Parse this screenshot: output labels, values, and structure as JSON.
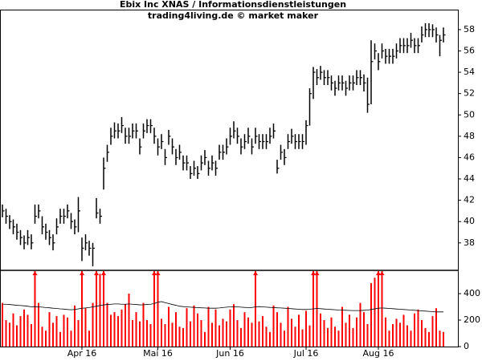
{
  "chart_data": {
    "type": "ohlc-volume",
    "title": "Ebix Inc XNAS / Informationsdienstleistungen",
    "subtitle": "trading4living.de © market maker",
    "categories": [
      null,
      null,
      null,
      null,
      null,
      null,
      null,
      null,
      null,
      null,
      null,
      null,
      null,
      null,
      null,
      null,
      null,
      null,
      null,
      null,
      null,
      null,
      "Apr 16",
      null,
      null,
      null,
      null,
      null,
      null,
      null,
      null,
      null,
      null,
      null,
      null,
      null,
      null,
      null,
      null,
      null,
      null,
      null,
      null,
      "Mai 16",
      null,
      null,
      null,
      null,
      null,
      null,
      null,
      null,
      null,
      null,
      null,
      null,
      null,
      null,
      null,
      null,
      null,
      null,
      null,
      "Jun 16",
      null,
      null,
      null,
      null,
      null,
      null,
      null,
      null,
      null,
      null,
      null,
      null,
      null,
      null,
      null,
      null,
      null,
      null,
      null,
      null,
      "Jul 16",
      null,
      null,
      null,
      null,
      null,
      null,
      null,
      null,
      null,
      null,
      null,
      null,
      null,
      null,
      null,
      null,
      null,
      null,
      null,
      "Aug 16",
      null,
      null,
      null,
      null,
      null,
      null,
      null,
      null,
      null,
      null,
      null,
      null,
      null,
      null,
      null,
      null,
      null,
      null
    ],
    "high": [
      41.6,
      41.2,
      40.6,
      40.2,
      39.8,
      39.2,
      38.7,
      39.2,
      38.8,
      41.6,
      41.6,
      40.5,
      39.8,
      39.2,
      38.8,
      40.3,
      41.2,
      41.2,
      41.6,
      40.8,
      40.2,
      42.3,
      38.5,
      38.8,
      38.2,
      38,
      42.2,
      41.2,
      46,
      47.2,
      48.8,
      49.3,
      49.2,
      49.8,
      48.8,
      48.8,
      49.2,
      49.2,
      47.8,
      49.2,
      49.6,
      49.6,
      48.8,
      47.8,
      48.2,
      46.8,
      48.6,
      47.8,
      46.8,
      47.2,
      46.2,
      46.2,
      45.2,
      45.7,
      45.2,
      46.2,
      46.7,
      45.7,
      46.2,
      45.7,
      47.2,
      47.2,
      47.8,
      48.8,
      49.4,
      48.8,
      47.8,
      48.2,
      48.8,
      47.8,
      48.8,
      48.2,
      48.2,
      48.2,
      48.8,
      49.2,
      45.8,
      47.2,
      46.8,
      48.2,
      48.7,
      48.2,
      48.2,
      48.2,
      49.5,
      52.5,
      54.5,
      54.3,
      54.6,
      54.2,
      54.2,
      53.7,
      53.2,
      53.7,
      53.7,
      53.2,
      53.7,
      53.7,
      54.2,
      54.2,
      53.8,
      53.5,
      57,
      56.7,
      55.8,
      56.7,
      56.2,
      56.2,
      56.2,
      56.7,
      57.2,
      57.2,
      57.2,
      57.7,
      57.2,
      57.2,
      58.3,
      58.6,
      58.6,
      58.5,
      58.2,
      57.5,
      58.2
    ],
    "low": [
      40.4,
      39.8,
      39.3,
      38.8,
      38.3,
      37.8,
      37.4,
      37.8,
      37.4,
      39.8,
      40.3,
      38.8,
      38.3,
      37.8,
      37.3,
      38.8,
      39.8,
      39.8,
      40.3,
      39.3,
      38.8,
      39,
      36.3,
      37.3,
      36.8,
      35.8,
      40.3,
      39.8,
      43,
      45.6,
      47.2,
      47.8,
      47.8,
      48.3,
      47.3,
      47.3,
      47.8,
      47.8,
      46.3,
      47.8,
      48.3,
      48.3,
      47.3,
      46.2,
      46.8,
      45.3,
      47.2,
      46.3,
      45.3,
      45.8,
      44.8,
      44.8,
      44,
      44.3,
      44,
      44.8,
      45.3,
      44.3,
      44.8,
      44.3,
      45.8,
      45.8,
      46.3,
      47.2,
      47.8,
      47.3,
      46.3,
      46.8,
      47.3,
      46.3,
      47.3,
      46.8,
      46.8,
      46.8,
      47.3,
      47.8,
      44.5,
      45.8,
      45.3,
      46.8,
      47.3,
      46.8,
      46.8,
      46.8,
      47.2,
      49,
      51.5,
      52.8,
      53.3,
      52.8,
      52.8,
      52.3,
      51.8,
      52.3,
      52.3,
      51.8,
      52.3,
      52.3,
      52.8,
      52.8,
      52.2,
      50.2,
      51,
      55.2,
      54.2,
      55.3,
      54.8,
      54.8,
      54.8,
      55.3,
      55.8,
      55.8,
      55.8,
      56.3,
      55.8,
      55.8,
      56.8,
      57.3,
      57.3,
      57.3,
      56.8,
      55.5,
      56.8
    ],
    "close": [
      41,
      40.5,
      40,
      39.5,
      39,
      38.5,
      38,
      38.5,
      38,
      40.5,
      41,
      39.5,
      39,
      38.5,
      38,
      39.5,
      40.5,
      40.5,
      41,
      40,
      39.5,
      41,
      37.5,
      38,
      37.5,
      37.5,
      40.8,
      40.5,
      45,
      46.5,
      48,
      48.5,
      48.5,
      49,
      48,
      48,
      48.5,
      48.5,
      47,
      48.5,
      49,
      49,
      48,
      47,
      47.5,
      46,
      48,
      47,
      46,
      46.5,
      45.5,
      45.5,
      44.5,
      45,
      44.5,
      45.5,
      46,
      45,
      45.5,
      45,
      46.5,
      46.5,
      47,
      48,
      48.5,
      48,
      47,
      47.5,
      48,
      47,
      48,
      47.5,
      47.5,
      47.5,
      48,
      48.5,
      45,
      46.5,
      46,
      47.5,
      48,
      47.5,
      47.5,
      47.5,
      49,
      52,
      54,
      53.5,
      54,
      53.5,
      53.5,
      53,
      52.5,
      53,
      53,
      52.5,
      53,
      53,
      53.5,
      53.5,
      53,
      51,
      55,
      56,
      55,
      56,
      55.5,
      55.5,
      55.5,
      56,
      56.5,
      56.5,
      56.5,
      57,
      56.5,
      56.5,
      57.5,
      58,
      58,
      58,
      57.5,
      57,
      57.5
    ],
    "color": "#000000",
    "ylim": [
      35.5,
      59.8
    ],
    "yticks": [
      38,
      40,
      42,
      44,
      46,
      48,
      50,
      52,
      54,
      56,
      58
    ],
    "volume": {
      "color": "#ff0000",
      "values": [
        330,
        200,
        180,
        250,
        160,
        230,
        280,
        240,
        170,
        650,
        330,
        150,
        120,
        260,
        180,
        230,
        110,
        240,
        220,
        120,
        310,
        200,
        650,
        290,
        120,
        330,
        650,
        550,
        650,
        330,
        240,
        260,
        230,
        280,
        320,
        400,
        200,
        260,
        190,
        330,
        200,
        170,
        650,
        650,
        210,
        170,
        300,
        180,
        260,
        150,
        140,
        290,
        190,
        310,
        250,
        200,
        110,
        300,
        180,
        280,
        160,
        210,
        190,
        280,
        320,
        200,
        140,
        260,
        220,
        180,
        650,
        190,
        230,
        150,
        110,
        310,
        260,
        180,
        120,
        300,
        210,
        150,
        240,
        130,
        270,
        160,
        650,
        650,
        250,
        200,
        140,
        220,
        150,
        120,
        300,
        180,
        240,
        140,
        220,
        330,
        260,
        170,
        480,
        520,
        650,
        650,
        220,
        120,
        170,
        210,
        180,
        240,
        160,
        120,
        250,
        280,
        200,
        140,
        110,
        230,
        290,
        120,
        110
      ],
      "average": [
        320,
        320,
        318,
        315,
        312,
        310,
        308,
        305,
        300,
        302,
        300,
        298,
        295,
        293,
        290,
        288,
        285,
        283,
        280,
        278,
        280,
        285,
        290,
        292,
        295,
        300,
        305,
        310,
        315,
        318,
        320,
        322,
        322,
        320,
        320,
        322,
        320,
        318,
        315,
        316,
        318,
        320,
        325,
        335,
        340,
        332,
        325,
        318,
        312,
        305,
        302,
        300,
        298,
        296,
        295,
        293,
        292,
        290,
        290,
        290,
        292,
        295,
        298,
        300,
        300,
        300,
        298,
        296,
        295,
        295,
        300,
        302,
        300,
        298,
        296,
        295,
        293,
        292,
        290,
        288,
        286,
        284,
        282,
        280,
        280,
        282,
        285,
        288,
        286,
        284,
        282,
        280,
        278,
        276,
        275,
        274,
        273,
        272,
        272,
        272,
        274,
        276,
        280,
        285,
        290,
        292,
        290,
        288,
        286,
        284,
        282,
        280,
        278,
        276,
        274,
        272,
        270,
        268,
        266,
        264,
        262,
        262,
        262
      ],
      "average_color": "#000000",
      "ylim": [
        0,
        570
      ],
      "yticks": [
        0,
        200,
        400
      ]
    }
  }
}
